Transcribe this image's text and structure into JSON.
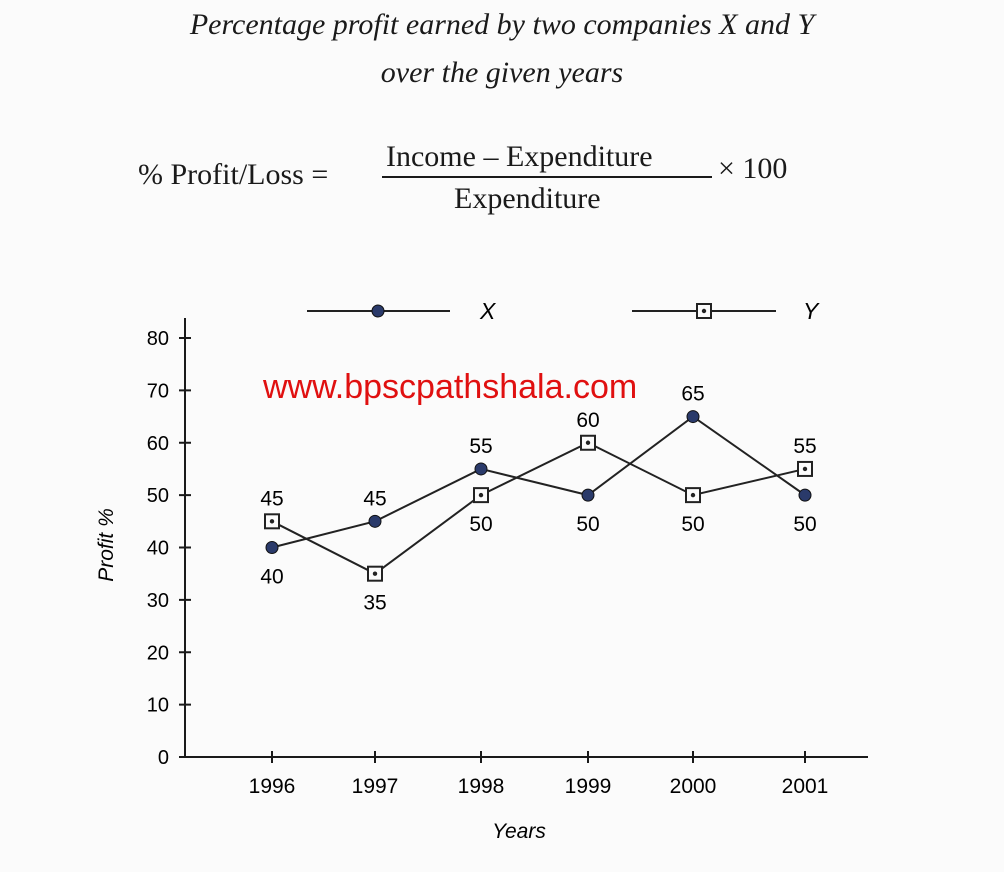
{
  "title_line1": "Percentage profit earned by two companies X and Y",
  "title_line2": "over the given years",
  "formula": {
    "lhs": "% Profit/Loss =",
    "numerator": "Income – Expenditure",
    "denominator": "Expenditure",
    "multiplier": "× 100"
  },
  "watermark": "www.bpscpathshala.com",
  "chart_data": {
    "type": "line",
    "categories": [
      "1996",
      "1997",
      "1998",
      "1999",
      "2000",
      "2001"
    ],
    "xlabel": "Years",
    "ylabel": "Profit %",
    "ylim": [
      0,
      80
    ],
    "yticks": [
      0,
      10,
      20,
      30,
      40,
      50,
      60,
      70,
      80
    ],
    "grid": false,
    "legend_position": "top",
    "series": [
      {
        "name": "X",
        "marker": "filled-circle",
        "color": "#2a3a6a",
        "values": [
          40,
          45,
          55,
          50,
          65,
          50
        ],
        "labels": [
          "40",
          "45",
          "55",
          "50",
          "65",
          "50"
        ]
      },
      {
        "name": "Y",
        "marker": "hollow-square",
        "color": "#2a3a6a",
        "values": [
          45,
          35,
          50,
          60,
          50,
          55
        ],
        "labels": [
          "45",
          "35",
          "50",
          "60",
          "50",
          "55"
        ]
      }
    ]
  }
}
